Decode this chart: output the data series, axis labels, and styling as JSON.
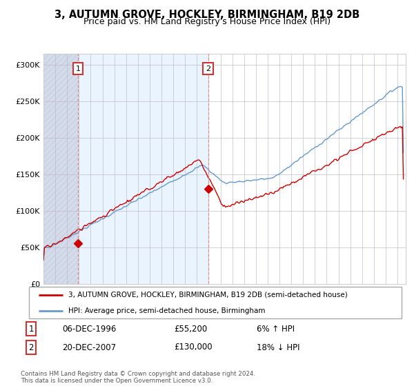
{
  "title": "3, AUTUMN GROVE, HOCKLEY, BIRMINGHAM, B19 2DB",
  "subtitle": "Price paid vs. HM Land Registry's House Price Index (HPI)",
  "title_fontsize": 10.5,
  "subtitle_fontsize": 9,
  "ylabel_ticks": [
    "£0",
    "£50K",
    "£100K",
    "£150K",
    "£200K",
    "£250K",
    "£300K"
  ],
  "ytick_vals": [
    0,
    50000,
    100000,
    150000,
    200000,
    250000,
    300000
  ],
  "ylim": [
    0,
    315000
  ],
  "xlim_start": 1994.0,
  "xlim_end": 2024.7,
  "sale1_date_num": 1996.92,
  "sale1_price": 55200,
  "sale2_date_num": 2007.96,
  "sale2_price": 130000,
  "legend_line1": "3, AUTUMN GROVE, HOCKLEY, BIRMINGHAM, B19 2DB (semi-detached house)",
  "legend_line2": "HPI: Average price, semi-detached house, Birmingham",
  "ann1_label": "1",
  "ann2_label": "2",
  "table1_num": "1",
  "table1_date": "06-DEC-1996",
  "table1_price": "£55,200",
  "table1_hpi": "6% ↑ HPI",
  "table2_num": "2",
  "table2_date": "20-DEC-2007",
  "table2_price": "£130,000",
  "table2_hpi": "18% ↓ HPI",
  "footer": "Contains HM Land Registry data © Crown copyright and database right 2024.\nThis data is licensed under the Open Government Licence v3.0.",
  "red_color": "#cc0000",
  "blue_color": "#6699cc",
  "bg_shaded_color": "#ddeeff",
  "hatch_color": "#d0d8e8",
  "vline_color": "#dd8888",
  "grid_color": "#bbbbcc",
  "ann_box_color": "#cc3333",
  "legend_border_color": "#aaaaaa"
}
